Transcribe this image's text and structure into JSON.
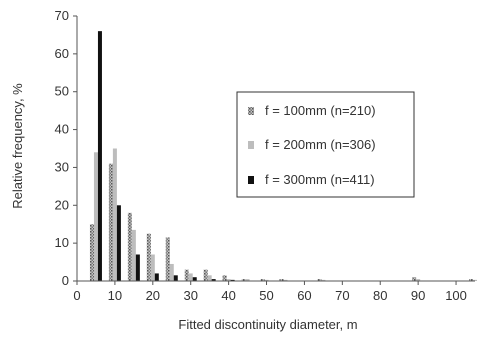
{
  "chart_data": {
    "type": "bar",
    "title": "",
    "xlabel": "Fitted discontinuity diameter, m",
    "ylabel": "Relative frequency, %",
    "xlim": [
      0,
      105
    ],
    "ylim": [
      0,
      70
    ],
    "xticks": [
      0,
      10,
      20,
      30,
      40,
      50,
      60,
      70,
      80,
      90,
      100
    ],
    "yticks": [
      0,
      10,
      20,
      30,
      40,
      50,
      60,
      70
    ],
    "grid": false,
    "legend_position": "right",
    "bin_centers": [
      5,
      10,
      15,
      20,
      25,
      30,
      35,
      40,
      45,
      50,
      55,
      60,
      65,
      70,
      75,
      80,
      85,
      90,
      95,
      100,
      105
    ],
    "series": [
      {
        "name": "f = 100mm (n=210)",
        "color": "#8a8a8a",
        "pattern": "dotted",
        "values": [
          15,
          31,
          18,
          12.5,
          11.5,
          3,
          3,
          1.5,
          0.5,
          0.5,
          0.5,
          0,
          0.5,
          0,
          0,
          0,
          0,
          1,
          0,
          0,
          0.5
        ]
      },
      {
        "name": "f = 200mm (n=306)",
        "color": "#bdbdbd",
        "pattern": "solid",
        "values": [
          34,
          35,
          13.5,
          7,
          4.5,
          2,
          1.5,
          0.5,
          0.5,
          0.3,
          0.3,
          0,
          0.3,
          0,
          0,
          0,
          0,
          0.5,
          0,
          0,
          0.3
        ]
      },
      {
        "name": "f = 300mm (n=411)",
        "color": "#111111",
        "pattern": "solid",
        "values": [
          66,
          20,
          7,
          2,
          1.5,
          1,
          0.5,
          0.3,
          0,
          0,
          0,
          0,
          0,
          0,
          0,
          0,
          0,
          0,
          0,
          0,
          0
        ]
      }
    ]
  }
}
